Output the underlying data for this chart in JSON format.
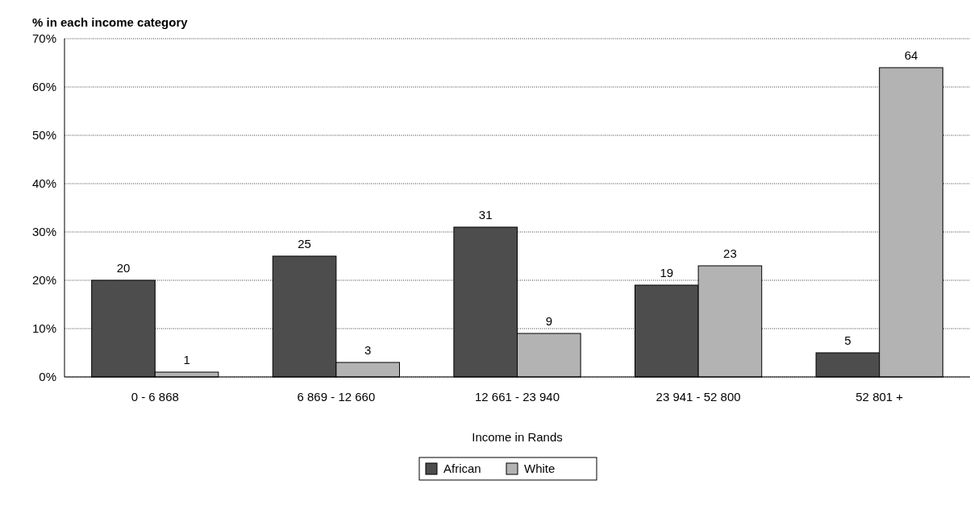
{
  "chart_data": {
    "type": "bar",
    "ylabel": "% in each income category",
    "xlabel": "Income in Rands",
    "categories": [
      "0 - 6 868",
      "6 869 - 12 660",
      "12 661 - 23 940",
      "23 941 - 52 800",
      "52 801 +"
    ],
    "series": [
      {
        "name": "African",
        "color": "#4d4d4d",
        "values": [
          20,
          25,
          31,
          19,
          5
        ]
      },
      {
        "name": "White",
        "color": "#b3b3b3",
        "values": [
          1,
          3,
          9,
          23,
          64
        ]
      }
    ],
    "ylim": [
      0,
      70
    ],
    "yticks": [
      {
        "value": 0,
        "label": "0%"
      },
      {
        "value": 10,
        "label": "10%"
      },
      {
        "value": 20,
        "label": "20%"
      },
      {
        "value": 30,
        "label": "30%"
      },
      {
        "value": 40,
        "label": "40%"
      },
      {
        "value": 50,
        "label": "50%"
      },
      {
        "value": 60,
        "label": "60%"
      },
      {
        "value": 70,
        "label": "70%"
      }
    ],
    "grid": "y",
    "data_labels": true,
    "legend": "bottom"
  }
}
